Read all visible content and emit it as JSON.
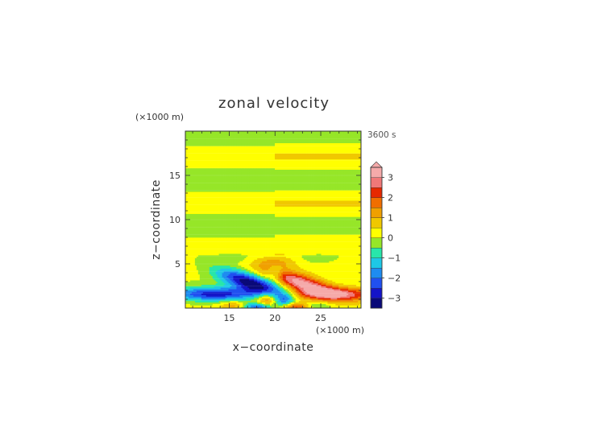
{
  "chart_data": {
    "type": "heatmap",
    "title": "zonal velocity",
    "xlabel": "x−coordinate",
    "ylabel": "z−coordinate",
    "x_unit": "(×1000 m)",
    "y_unit": "(×1000 m)",
    "time_label": "3600 s",
    "xlim": [
      10.2,
      29.4
    ],
    "ylim": [
      0,
      20
    ],
    "xticks": [
      15,
      20,
      25
    ],
    "xtick_labels": [
      "15",
      "20",
      "25"
    ],
    "yticks": [
      5,
      10,
      15
    ],
    "ytick_labels": [
      "5",
      "10",
      "15"
    ],
    "colorbar": {
      "tick_labels": [
        "3",
        "2",
        "1",
        "0",
        "−1",
        "−2",
        "−3"
      ],
      "levels": [
        {
          "min": -3.5,
          "max": -3.0,
          "color": "#0a0a78"
        },
        {
          "min": -3.0,
          "max": -2.5,
          "color": "#1414c8"
        },
        {
          "min": -2.5,
          "max": -2.0,
          "color": "#2050f0"
        },
        {
          "min": -2.0,
          "max": -1.5,
          "color": "#1e8cf0"
        },
        {
          "min": -1.5,
          "max": -1.0,
          "color": "#1ec8e6"
        },
        {
          "min": -1.0,
          "max": -0.5,
          "color": "#28e6aa"
        },
        {
          "min": -0.5,
          "max": 0.0,
          "color": "#96e628"
        },
        {
          "min": 0.0,
          "max": 0.5,
          "color": "#ffff00"
        },
        {
          "min": 0.5,
          "max": 1.0,
          "color": "#f0c800"
        },
        {
          "min": 1.0,
          "max": 1.5,
          "color": "#f0a000"
        },
        {
          "min": 1.5,
          "max": 2.0,
          "color": "#f06e00"
        },
        {
          "min": 2.0,
          "max": 2.5,
          "color": "#e62800"
        },
        {
          "min": 2.5,
          "max": 3.0,
          "color": "#f07878"
        },
        {
          "min": 3.0,
          "max": 3.5,
          "color": "#f5aaaa"
        }
      ]
    },
    "fields": [
      {
        "x": 15.5,
        "z": 19.2,
        "value": 0.2
      },
      {
        "x": 15.5,
        "z": 16.6,
        "value": -0.3
      },
      {
        "x": 15.5,
        "z": 13.5,
        "value": 0.2
      },
      {
        "x": 15.5,
        "z": 11.0,
        "value": -0.3
      },
      {
        "x": 15.5,
        "z": 8.5,
        "value": 0.2
      },
      {
        "x": 15.5,
        "z": 6.5,
        "value": -0.3
      },
      {
        "x": 24.5,
        "z": 19.0,
        "value": 0.2
      },
      {
        "x": 24.5,
        "z": 16.6,
        "value": -0.3
      },
      {
        "x": 24.5,
        "z": 13.5,
        "value": 0.2
      },
      {
        "x": 24.5,
        "z": 11.0,
        "value": -0.3
      },
      {
        "x": 24.5,
        "z": 8.5,
        "value": 0.2
      },
      {
        "x": 24.5,
        "z": 6.0,
        "value": -0.3
      },
      {
        "x": 16.5,
        "z": 3.0,
        "value": -2.6
      },
      {
        "x": 23.5,
        "z": 3.0,
        "value": 2.6
      },
      {
        "x": 14.0,
        "z": 1.4,
        "value": -3.0
      },
      {
        "x": 26.5,
        "z": 1.4,
        "value": 2.2
      },
      {
        "x": 19.0,
        "z": 1.0,
        "value": 1.5
      },
      {
        "x": 21.0,
        "z": 1.0,
        "value": -1.5
      },
      {
        "x": 18.0,
        "z": 0.2,
        "value": -2.2
      },
      {
        "x": 22.0,
        "z": 0.2,
        "value": 2.0
      },
      {
        "x": 20.0,
        "z": 3.5,
        "value": -1.8
      }
    ]
  }
}
